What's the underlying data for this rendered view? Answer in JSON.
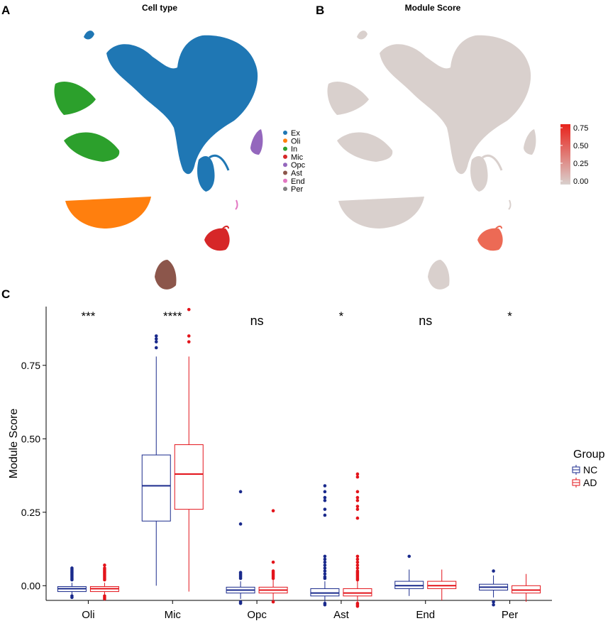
{
  "panel_labels": {
    "a": "A",
    "b": "B",
    "c": "C"
  },
  "umap_celltype": {
    "title": "Cell type",
    "legend": [
      {
        "label": "Ex",
        "color": "#1f77b4"
      },
      {
        "label": "Oli",
        "color": "#ff7f0e"
      },
      {
        "label": "In",
        "color": "#2ca02c"
      },
      {
        "label": "Mic",
        "color": "#d62728"
      },
      {
        "label": "Opc",
        "color": "#9467bd"
      },
      {
        "label": "Ast",
        "color": "#8c564b"
      },
      {
        "label": "End",
        "color": "#e377c2"
      },
      {
        "label": "Per",
        "color": "#7f7f7f"
      }
    ]
  },
  "umap_score": {
    "title": "Module Score",
    "colorbar": {
      "ticks": [
        "0.75",
        "0.50",
        "0.25",
        "0.00"
      ],
      "low": "#d9d0cd",
      "high": "#e8231c"
    }
  },
  "chart_data": {
    "type": "box",
    "title": "",
    "xlabel": "",
    "ylabel": "Module Score",
    "ylim": [
      -0.05,
      0.95
    ],
    "yticks": [
      0.0,
      0.25,
      0.5,
      0.75
    ],
    "ytick_labels": [
      "0.00",
      "0.25",
      "0.50",
      "0.75"
    ],
    "categories": [
      "Oli",
      "Mic",
      "Opc",
      "Ast",
      "End",
      "Per"
    ],
    "significance": [
      "***",
      "****",
      "ns",
      "*",
      "ns",
      "*"
    ],
    "legend": {
      "title": "Group",
      "items": [
        {
          "label": "NC",
          "color": "#1a2a8c"
        },
        {
          "label": "AD",
          "color": "#e3141b"
        }
      ]
    },
    "series": [
      {
        "name": "NC",
        "color": "#1a2a8c",
        "boxes": [
          {
            "q1": -0.02,
            "median": -0.01,
            "q3": -0.003,
            "wlow": -0.03,
            "whigh": 0.01,
            "outliers": [
              0.06,
              0.055,
              0.05,
              0.045,
              0.04,
              0.035,
              0.03,
              0.025,
              0.02,
              -0.035,
              -0.04
            ]
          },
          {
            "q1": 0.22,
            "median": 0.34,
            "q3": 0.445,
            "wlow": 0.0,
            "whigh": 0.78,
            "outliers": [
              0.81,
              0.83,
              0.84,
              0.85
            ]
          },
          {
            "q1": -0.025,
            "median": -0.015,
            "q3": -0.005,
            "wlow": -0.045,
            "whigh": 0.015,
            "outliers": [
              0.32,
              0.21,
              0.045,
              0.04,
              0.035,
              0.03,
              0.025,
              -0.055,
              -0.06
            ]
          },
          {
            "q1": -0.035,
            "median": -0.025,
            "q3": -0.01,
            "wlow": -0.055,
            "whigh": 0.015,
            "outliers": [
              0.34,
              0.32,
              0.3,
              0.29,
              0.26,
              0.24,
              0.1,
              0.09,
              0.08,
              0.07,
              0.06,
              0.05,
              0.04,
              0.03,
              0.025,
              -0.06,
              -0.065
            ]
          },
          {
            "q1": -0.01,
            "median": 0.0,
            "q3": 0.015,
            "wlow": -0.035,
            "whigh": 0.055,
            "outliers": [
              0.1
            ]
          },
          {
            "q1": -0.015,
            "median": -0.005,
            "q3": 0.005,
            "wlow": -0.04,
            "whigh": 0.035,
            "outliers": [
              0.05,
              -0.055,
              -0.065
            ]
          }
        ]
      },
      {
        "name": "AD",
        "color": "#e3141b",
        "boxes": [
          {
            "q1": -0.02,
            "median": -0.01,
            "q3": -0.003,
            "wlow": -0.03,
            "whigh": 0.01,
            "outliers": [
              0.07,
              0.06,
              0.055,
              0.05,
              0.045,
              0.04,
              0.035,
              0.03,
              0.025,
              0.02,
              -0.035,
              -0.04,
              -0.045
            ]
          },
          {
            "q1": 0.26,
            "median": 0.38,
            "q3": 0.48,
            "wlow": -0.02,
            "whigh": 0.78,
            "outliers": [
              0.83,
              0.85,
              0.94
            ]
          },
          {
            "q1": -0.025,
            "median": -0.015,
            "q3": -0.005,
            "wlow": -0.05,
            "whigh": 0.02,
            "outliers": [
              0.255,
              0.08,
              0.05,
              0.045,
              0.04,
              0.035,
              0.03,
              0.025,
              -0.055
            ]
          },
          {
            "q1": -0.035,
            "median": -0.025,
            "q3": -0.01,
            "wlow": -0.055,
            "whigh": 0.015,
            "outliers": [
              0.38,
              0.37,
              0.32,
              0.3,
              0.29,
              0.27,
              0.26,
              0.23,
              0.1,
              0.09,
              0.08,
              0.07,
              0.06,
              0.05,
              0.045,
              0.04,
              0.035,
              0.03,
              0.025,
              0.02,
              -0.06,
              -0.065,
              -0.07
            ]
          },
          {
            "q1": -0.01,
            "median": 0.0,
            "q3": 0.015,
            "wlow": -0.05,
            "whigh": 0.055,
            "outliers": []
          },
          {
            "q1": -0.025,
            "median": -0.015,
            "q3": 0.0,
            "wlow": -0.055,
            "whigh": 0.04,
            "outliers": []
          }
        ]
      }
    ]
  }
}
